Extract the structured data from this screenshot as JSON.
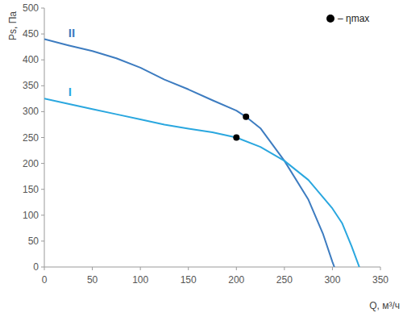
{
  "chart_data": {
    "type": "line",
    "x_label": "Q, м³/ч",
    "y_label": "Ps, Па",
    "xlim": [
      0,
      350
    ],
    "ylim": [
      0,
      500
    ],
    "xticks": [
      0,
      50,
      100,
      150,
      200,
      250,
      300,
      350
    ],
    "yticks": [
      0,
      50,
      100,
      150,
      200,
      250,
      300,
      350,
      400,
      450,
      500
    ],
    "grid": false,
    "legend": "top-right",
    "series": [
      {
        "name": "II",
        "type": "line",
        "color": "#3d7cc0",
        "x": [
          0,
          25,
          50,
          75,
          100,
          125,
          150,
          175,
          200,
          210,
          225,
          250,
          275,
          290,
          300,
          302
        ],
        "values": [
          440,
          428,
          417,
          403,
          385,
          362,
          343,
          322,
          302,
          290,
          268,
          205,
          130,
          65,
          10,
          0
        ]
      },
      {
        "name": "I",
        "type": "line",
        "color": "#2aa7df",
        "x": [
          0,
          25,
          50,
          75,
          100,
          125,
          150,
          175,
          200,
          225,
          250,
          275,
          300,
          310,
          320,
          328
        ],
        "values": [
          325,
          315,
          305,
          295,
          285,
          275,
          267,
          260,
          250,
          232,
          205,
          168,
          113,
          85,
          40,
          0
        ]
      },
      {
        "name": "– ηmax",
        "type": "scatter",
        "marker": "circle",
        "color": "#000000",
        "x": [
          210,
          200
        ],
        "values": [
          290,
          250
        ]
      }
    ]
  }
}
